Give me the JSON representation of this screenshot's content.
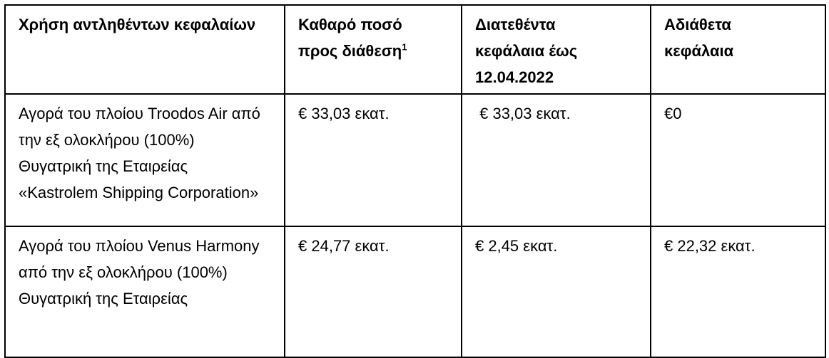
{
  "table": {
    "headers": [
      {
        "text": "Χρήση αντληθέντων κεφαλαίων"
      },
      {
        "text": "Καθαρό ποσό προς διάθεση",
        "footnote": "1"
      },
      {
        "text": "Διατεθέντα κεφάλαια έως 12.04.2022"
      },
      {
        "text": "Αδιάθετα κεφάλαια"
      }
    ],
    "rows": [
      [
        "Αγορά του πλοίου Troodos Air από την εξ ολοκλήρου (100%) Θυγατρική της Εταιρείας «Kastrolem Shipping Corporation»",
        "€ 33,03 εκατ.",
        " € 33,03 εκατ.",
        "€0"
      ],
      [
        "Αγορά του πλοίου Venus Harmony από την εξ ολοκλήρου (100%) Θυγατρική της Εταιρείας",
        "€ 24,77 εκατ.",
        "€ 2,45 εκατ.",
        "€ 22,32 εκατ."
      ]
    ]
  }
}
